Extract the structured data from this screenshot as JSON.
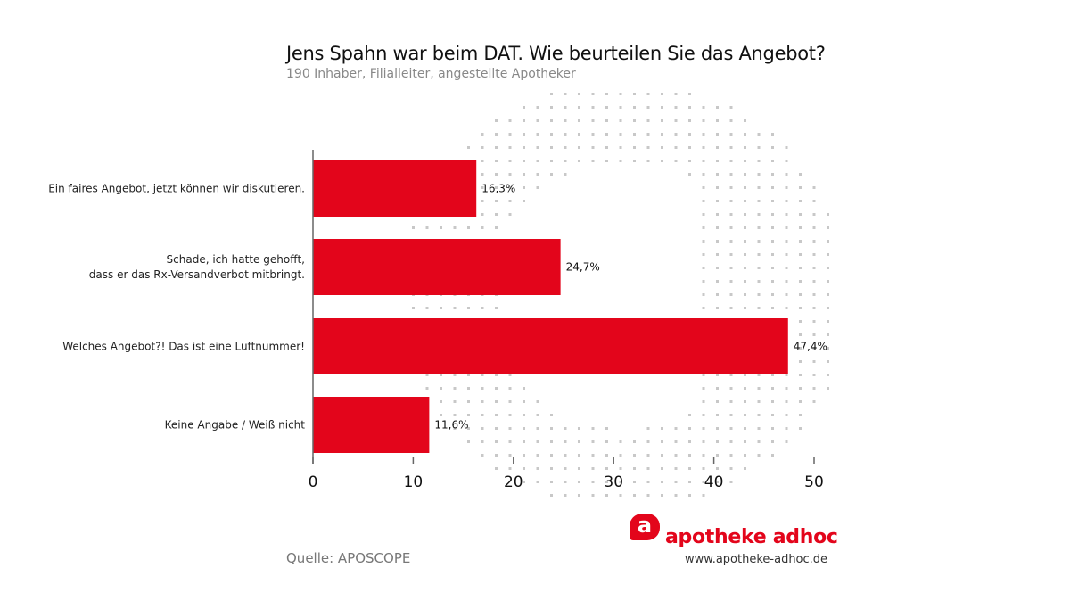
{
  "chart_data": {
    "type": "bar",
    "orientation": "horizontal",
    "title": "Jens Spahn war beim DAT. Wie beurteilen Sie das Angebot?",
    "subtitle": "190 Inhaber, Filialleiter, angestellte Apotheker",
    "categories": [
      [
        "Ein faires Angebot, jetzt können wir diskutieren."
      ],
      [
        "Schade, ich hatte gehofft,",
        "dass er das Rx-Versandverbot mitbringt."
      ],
      [
        "Welches Angebot?! Das ist eine Luftnummer!"
      ],
      [
        "Keine Angabe / Weiß nicht"
      ]
    ],
    "values": [
      16.3,
      24.7,
      47.4,
      11.6
    ],
    "data_labels": [
      "16,3%",
      "24,7%",
      "47,4%",
      "11,6%"
    ],
    "xlim": [
      0,
      50
    ],
    "xticks": [
      0,
      10,
      20,
      30,
      40,
      50
    ],
    "xtick_labels": [
      "0",
      "10",
      "20",
      "30",
      "40",
      "50"
    ],
    "bar_color": "#e3051b",
    "grid": false
  },
  "source": "Quelle: APOSCOPE",
  "logo": {
    "mark": "a",
    "name": "apotheke adhoc",
    "url": "www.apotheke-adhoc.de"
  }
}
